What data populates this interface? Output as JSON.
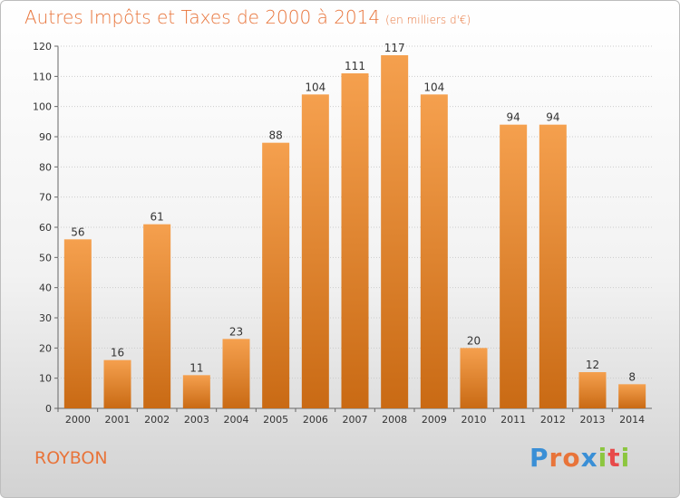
{
  "page": {
    "title": "Autres Impôts et Taxes de 2000 à 2014",
    "title_unit": "(en milliers d'€)",
    "location": "ROYBON",
    "logo_text": "Proxiti"
  },
  "colors": {
    "title": "#e8743a",
    "bar_top": "#f5a04e",
    "bar_bottom": "#c96a14",
    "grid": "#cccccc"
  },
  "chart_data": {
    "type": "bar",
    "title": "Autres Impôts et Taxes de 2000 à 2014",
    "xlabel": "",
    "ylabel": "",
    "categories": [
      "2000",
      "2001",
      "2002",
      "2003",
      "2004",
      "2005",
      "2006",
      "2007",
      "2008",
      "2009",
      "2010",
      "2011",
      "2012",
      "2013",
      "2014"
    ],
    "values": [
      56,
      16,
      61,
      11,
      23,
      88,
      104,
      111,
      117,
      104,
      20,
      94,
      94,
      12,
      8
    ],
    "ylim": [
      0,
      120
    ],
    "yticks": [
      0,
      10,
      20,
      30,
      40,
      50,
      60,
      70,
      80,
      90,
      100,
      110,
      120
    ],
    "grid": true,
    "legend": "none"
  }
}
